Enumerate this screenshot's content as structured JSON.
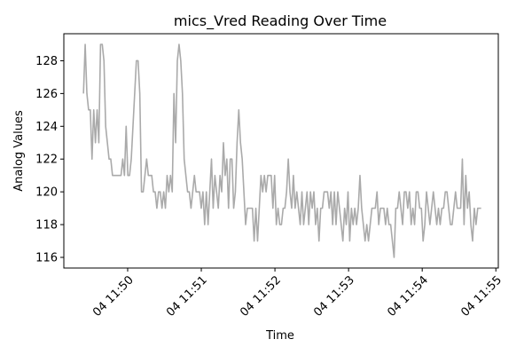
{
  "chart_data": {
    "type": "line",
    "title": "mics_Vred Reading Over Time",
    "xlabel": "Time",
    "ylabel": "Analog Values",
    "x_time_range": [
      "11:49:24",
      "11:54:48"
    ],
    "xlim": [
      "11:49:08",
      "11:55:02"
    ],
    "ylim": [
      115.35,
      129.65
    ],
    "grid": false,
    "legend": "none",
    "x_ticks": [
      "04 11:50",
      "04 11:51",
      "04 11:52",
      "04 11:53",
      "04 11:54",
      "04 11:55"
    ],
    "y_ticks": [
      116,
      118,
      120,
      122,
      124,
      126,
      128
    ],
    "series": [
      {
        "color": "#aaaaaa",
        "values": [
          126,
          129,
          126,
          125,
          125,
          122,
          125,
          123,
          125,
          123,
          129,
          129,
          128,
          124,
          123,
          122,
          122,
          121,
          121,
          121,
          121,
          121,
          121,
          122,
          121,
          124,
          121,
          121,
          122,
          124,
          126,
          128,
          128,
          126,
          120,
          120,
          121,
          122,
          121,
          121,
          121,
          120,
          120,
          119,
          120,
          120,
          119,
          120,
          119,
          121,
          120,
          121,
          120,
          126,
          123,
          128,
          129,
          128,
          126,
          122,
          121,
          120,
          120,
          119,
          120,
          121,
          120,
          120,
          120,
          119,
          120,
          118,
          120,
          118,
          120,
          122,
          119,
          121,
          120,
          119,
          121,
          120,
          123,
          121,
          122,
          119,
          122,
          122,
          119,
          120,
          123,
          125,
          123,
          122,
          120,
          118,
          119,
          119,
          119,
          119,
          117,
          119,
          117,
          119,
          121,
          120,
          121,
          120,
          121,
          121,
          121,
          119,
          121,
          118,
          119,
          118,
          118,
          119,
          119,
          120,
          122,
          120,
          119,
          121,
          119,
          120,
          119,
          118,
          120,
          118,
          119,
          120,
          118,
          120,
          119,
          120,
          118,
          119,
          117,
          119,
          119,
          120,
          120,
          120,
          119,
          120,
          118,
          120,
          118,
          120,
          119,
          118,
          117,
          119,
          118,
          120,
          117,
          119,
          118,
          119,
          118,
          119,
          121,
          119,
          118,
          117,
          118,
          117,
          118,
          119,
          119,
          119,
          120,
          118,
          119,
          119,
          119,
          118,
          119,
          118,
          118,
          117,
          116,
          119,
          119,
          120,
          119,
          118,
          120,
          120,
          119,
          120,
          118,
          119,
          118,
          120,
          120,
          119,
          119,
          117,
          118,
          120,
          119,
          118,
          119,
          120,
          119,
          118,
          119,
          118,
          119,
          119,
          120,
          120,
          119,
          118,
          118,
          119,
          120,
          119,
          119,
          119,
          122,
          118,
          121,
          119,
          120,
          118,
          117,
          119,
          118,
          119,
          119,
          119
        ]
      }
    ]
  }
}
